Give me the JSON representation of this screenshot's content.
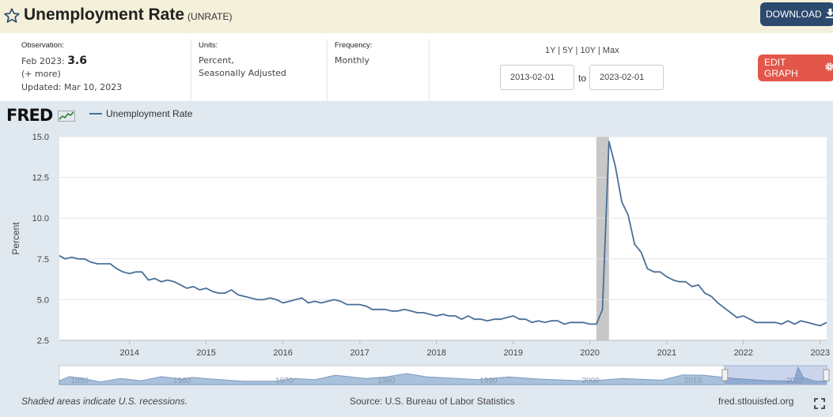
{
  "header": {
    "title": "Unemployment Rate",
    "series_code": "(UNRATE)",
    "download_label": "DOWNLOAD"
  },
  "meta": {
    "observation_label": "Observation:",
    "observation_date": "Feb 2023:",
    "observation_value": "3.6",
    "more_label": "(+ more)",
    "updated": "Updated: Mar 10, 2023",
    "units_label": "Units:",
    "units_line1": "Percent,",
    "units_line2": "Seasonally Adjusted",
    "frequency_label": "Frequency:",
    "frequency_value": "Monthly"
  },
  "controls": {
    "range_links": "1Y | 5Y | 10Y | Max",
    "start_date": "2013-02-01",
    "to_label": "to",
    "end_date": "2023-02-01",
    "edit_label": "EDIT GRAPH"
  },
  "brand": {
    "logo": "FRED"
  },
  "footer": {
    "recession_note": "Shaded areas indicate U.S. recessions.",
    "source": "Source: U.S. Bureau of Labor Statistics",
    "site": "fred.stlouisfed.org"
  },
  "colors": {
    "line": "#4a6f98",
    "recession": "#c8c8c8",
    "download_button": "#2c4a6e",
    "edit_button": "#e2574a"
  },
  "icons": {
    "favorite": "star-icon",
    "download": "download-icon",
    "edit": "gear-icon",
    "fullscreen": "expand-icon"
  },
  "chart_data": {
    "type": "line",
    "ylabel": "Percent",
    "ylim": [
      2.5,
      15.0
    ],
    "yticks": [
      "2.5",
      "5.0",
      "7.5",
      "10.0",
      "12.5",
      "15.0"
    ],
    "xlim": [
      "2013-02-01",
      "2023-02-01"
    ],
    "xticks": [
      "2014",
      "2015",
      "2016",
      "2017",
      "2018",
      "2019",
      "2020",
      "2021",
      "2022",
      "2023"
    ],
    "grid": true,
    "legend_position": "top-left",
    "recessions": [
      {
        "start": "2020-02-01",
        "end": "2020-04-01"
      }
    ],
    "series": [
      {
        "name": "Unemployment Rate",
        "x": [
          "2013-02",
          "2013-03",
          "2013-04",
          "2013-05",
          "2013-06",
          "2013-07",
          "2013-08",
          "2013-09",
          "2013-10",
          "2013-11",
          "2013-12",
          "2014-01",
          "2014-02",
          "2014-03",
          "2014-04",
          "2014-05",
          "2014-06",
          "2014-07",
          "2014-08",
          "2014-09",
          "2014-10",
          "2014-11",
          "2014-12",
          "2015-01",
          "2015-02",
          "2015-03",
          "2015-04",
          "2015-05",
          "2015-06",
          "2015-07",
          "2015-08",
          "2015-09",
          "2015-10",
          "2015-11",
          "2015-12",
          "2016-01",
          "2016-02",
          "2016-03",
          "2016-04",
          "2016-05",
          "2016-06",
          "2016-07",
          "2016-08",
          "2016-09",
          "2016-10",
          "2016-11",
          "2016-12",
          "2017-01",
          "2017-02",
          "2017-03",
          "2017-04",
          "2017-05",
          "2017-06",
          "2017-07",
          "2017-08",
          "2017-09",
          "2017-10",
          "2017-11",
          "2017-12",
          "2018-01",
          "2018-02",
          "2018-03",
          "2018-04",
          "2018-05",
          "2018-06",
          "2018-07",
          "2018-08",
          "2018-09",
          "2018-10",
          "2018-11",
          "2018-12",
          "2019-01",
          "2019-02",
          "2019-03",
          "2019-04",
          "2019-05",
          "2019-06",
          "2019-07",
          "2019-08",
          "2019-09",
          "2019-10",
          "2019-11",
          "2019-12",
          "2020-01",
          "2020-02",
          "2020-03",
          "2020-04",
          "2020-05",
          "2020-06",
          "2020-07",
          "2020-08",
          "2020-09",
          "2020-10",
          "2020-11",
          "2020-12",
          "2021-01",
          "2021-02",
          "2021-03",
          "2021-04",
          "2021-05",
          "2021-06",
          "2021-07",
          "2021-08",
          "2021-09",
          "2021-10",
          "2021-11",
          "2021-12",
          "2022-01",
          "2022-02",
          "2022-03",
          "2022-04",
          "2022-05",
          "2022-06",
          "2022-07",
          "2022-08",
          "2022-09",
          "2022-10",
          "2022-11",
          "2022-12",
          "2023-01",
          "2023-02"
        ],
        "values": [
          7.7,
          7.5,
          7.6,
          7.5,
          7.5,
          7.3,
          7.2,
          7.2,
          7.2,
          6.9,
          6.7,
          6.6,
          6.7,
          6.7,
          6.2,
          6.3,
          6.1,
          6.2,
          6.1,
          5.9,
          5.7,
          5.8,
          5.6,
          5.7,
          5.5,
          5.4,
          5.4,
          5.6,
          5.3,
          5.2,
          5.1,
          5.0,
          5.0,
          5.1,
          5.0,
          4.8,
          4.9,
          5.0,
          5.1,
          4.8,
          4.9,
          4.8,
          4.9,
          5.0,
          4.9,
          4.7,
          4.7,
          4.7,
          4.6,
          4.4,
          4.4,
          4.4,
          4.3,
          4.3,
          4.4,
          4.3,
          4.2,
          4.2,
          4.1,
          4.0,
          4.1,
          4.0,
          4.0,
          3.8,
          4.0,
          3.8,
          3.8,
          3.7,
          3.8,
          3.8,
          3.9,
          4.0,
          3.8,
          3.8,
          3.6,
          3.7,
          3.6,
          3.7,
          3.7,
          3.5,
          3.6,
          3.6,
          3.6,
          3.5,
          3.5,
          4.4,
          14.7,
          13.2,
          11.0,
          10.2,
          8.4,
          7.9,
          6.9,
          6.7,
          6.7,
          6.4,
          6.2,
          6.1,
          6.1,
          5.8,
          5.9,
          5.4,
          5.2,
          4.8,
          4.5,
          4.2,
          3.9,
          4.0,
          3.8,
          3.6,
          3.6,
          3.6,
          3.6,
          3.5,
          3.7,
          3.5,
          3.7,
          3.6,
          3.5,
          3.4,
          3.6
        ]
      }
    ],
    "navigator": {
      "tick_labels": [
        "1950",
        "1960",
        "1970",
        "1980",
        "1990",
        "2000",
        "2010",
        "2020"
      ],
      "selected_range": [
        "2013-02-01",
        "2023-02-01"
      ]
    }
  }
}
